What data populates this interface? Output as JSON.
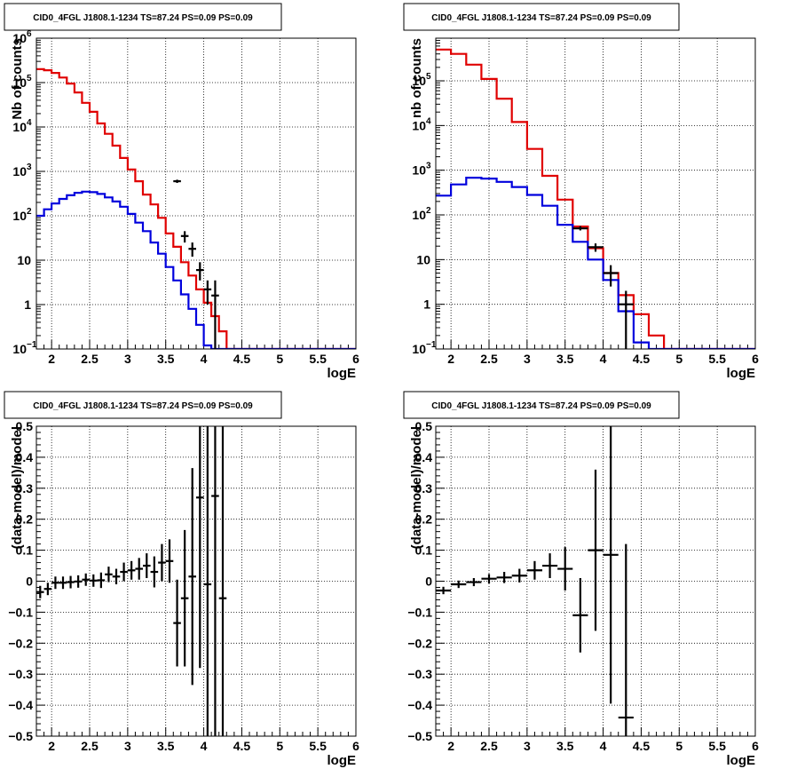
{
  "chart_data": [
    {
      "type": "line",
      "title": "CID0_4FGL J1808.1-1234 TS=87.24 PS=0.09 PS=0.09",
      "xlabel": "logE",
      "ylabel": "Nb of counts",
      "xlim": [
        1.8,
        6.0
      ],
      "ylim": [
        0.1,
        1000000
      ],
      "yscale": "log",
      "grid": true,
      "x_ticks": [
        "2",
        "2.5",
        "3",
        "3.5",
        "4",
        "4.5",
        "5",
        "5.5",
        "6"
      ],
      "y_ticks": [
        {
          "v": 0.1,
          "base": "10",
          "exp": "−1"
        },
        {
          "v": 1,
          "label": "1"
        },
        {
          "v": 10,
          "label": "10"
        },
        {
          "v": 100,
          "base": "10",
          "exp": "2"
        },
        {
          "v": 1000,
          "base": "10",
          "exp": "3"
        },
        {
          "v": 10000,
          "base": "10",
          "exp": "4"
        },
        {
          "v": 100000,
          "base": "10",
          "exp": "5"
        },
        {
          "v": 1000000,
          "base": "10",
          "exp": "6"
        }
      ],
      "bin_edges_start": 1.8,
      "bin_width": 0.1,
      "series": [
        {
          "role": "model-total",
          "color": "#e00000",
          "values": [
            200000,
            190000,
            165000,
            130000,
            95000,
            60000,
            35000,
            22000,
            12000,
            7000,
            3800,
            2000,
            1100,
            600,
            300,
            180,
            90,
            40,
            20,
            9,
            4.5,
            2.2,
            1.1,
            0.55,
            0.25,
            0.1,
            0.1,
            0.1,
            0.1,
            0.1,
            0.1,
            0.1,
            0.1,
            0.1,
            0.1,
            0.1,
            0.1,
            0.1,
            0.1,
            0.1,
            0.1,
            0.1
          ]
        },
        {
          "role": "component",
          "color": "#0000dd",
          "values": [
            100,
            140,
            190,
            240,
            290,
            330,
            350,
            340,
            310,
            260,
            210,
            160,
            110,
            70,
            45,
            25,
            14,
            7,
            3.5,
            1.7,
            0.8,
            0.35,
            0.12,
            0.1,
            0.1,
            0.1,
            0.1,
            0.1,
            0.1,
            0.1,
            0.1,
            0.1,
            0.1,
            0.1,
            0.1,
            0.1,
            0.1,
            0.1,
            0.1,
            0.1,
            0.1,
            0.1
          ]
        },
        {
          "role": "data",
          "color": "#000000",
          "points": [
            [
              3.65,
              600,
              550,
              650
            ],
            [
              3.75,
              35,
              25,
              45
            ],
            [
              3.85,
              18,
              12,
              25
            ],
            [
              3.95,
              6,
              3.5,
              9
            ],
            [
              4.05,
              2.2,
              1.0,
              3.5
            ],
            [
              4.15,
              1.6,
              0.1,
              3.5
            ]
          ]
        }
      ]
    },
    {
      "type": "line",
      "title": "CID0_4FGL J1808.1-1234 TS=87.24 PS=0.09 PS=0.09",
      "xlabel": "logE",
      "ylabel": "nb of counts",
      "xlim": [
        1.8,
        6.0
      ],
      "ylim": [
        0.1,
        900000
      ],
      "yscale": "log",
      "grid": true,
      "x_ticks": [
        "2",
        "2.5",
        "3",
        "3.5",
        "4",
        "4.5",
        "5",
        "5.5",
        "6"
      ],
      "y_ticks": [
        {
          "v": 0.1,
          "base": "10",
          "exp": "−1"
        },
        {
          "v": 1,
          "label": "1"
        },
        {
          "v": 10,
          "label": "10"
        },
        {
          "v": 100,
          "base": "10",
          "exp": "2"
        },
        {
          "v": 1000,
          "base": "10",
          "exp": "3"
        },
        {
          "v": 10000,
          "base": "10",
          "exp": "4"
        },
        {
          "v": 100000,
          "base": "10",
          "exp": "5"
        }
      ],
      "bin_edges_start": 1.8,
      "bin_width": 0.2,
      "series": [
        {
          "role": "model-total",
          "color": "#e00000",
          "values": [
            500000,
            400000,
            230000,
            110000,
            40000,
            12000,
            3000,
            750,
            220,
            55,
            18,
            5,
            1.6,
            0.6,
            0.2,
            0.1,
            0.1,
            0.1,
            0.1,
            0.1,
            0.1
          ]
        },
        {
          "role": "component",
          "color": "#0000dd",
          "values": [
            270,
            480,
            680,
            650,
            550,
            420,
            280,
            160,
            60,
            25,
            10,
            3.5,
            0.7,
            0.14,
            0.1,
            0.1,
            0.1,
            0.1,
            0.1,
            0.1,
            0.1
          ]
        },
        {
          "role": "data",
          "color": "#000000",
          "points": [
            [
              3.7,
              50,
              45,
              56
            ],
            [
              3.9,
              19,
              15,
              23
            ],
            [
              4.1,
              5,
              2.5,
              7.5
            ],
            [
              4.3,
              1,
              0.1,
              2
            ]
          ]
        }
      ]
    },
    {
      "type": "scatter",
      "title": "CID0_4FGL J1808.1-1234 TS=87.24 PS=0.09 PS=0.09",
      "xlabel": "logE",
      "ylabel": "(data-model)/model",
      "xlim": [
        1.8,
        6.0
      ],
      "ylim": [
        -0.5,
        0.5
      ],
      "grid": true,
      "x_ticks": [
        "2",
        "2.5",
        "3",
        "3.5",
        "4",
        "4.5",
        "5",
        "5.5",
        "6"
      ],
      "y_ticks": [
        "−0.5",
        "−0.4",
        "−0.3",
        "−0.2",
        "−0.1",
        "0",
        "0.1",
        "0.2",
        "0.3",
        "0.4",
        "0.5"
      ],
      "bin_width": 0.1,
      "series": [
        {
          "role": "residual",
          "color": "#000000",
          "points": [
            [
              1.85,
              -0.035,
              0.02
            ],
            [
              1.95,
              -0.025,
              0.02
            ],
            [
              2.05,
              -0.005,
              0.02
            ],
            [
              2.15,
              -0.005,
              0.02
            ],
            [
              2.25,
              -0.003,
              0.02
            ],
            [
              2.35,
              -0.001,
              0.02
            ],
            [
              2.45,
              0.005,
              0.02
            ],
            [
              2.55,
              0.002,
              0.02
            ],
            [
              2.65,
              0.003,
              0.025
            ],
            [
              2.75,
              0.022,
              0.025
            ],
            [
              2.85,
              0.015,
              0.025
            ],
            [
              2.95,
              0.03,
              0.03
            ],
            [
              3.05,
              0.035,
              0.03
            ],
            [
              3.15,
              0.04,
              0.035
            ],
            [
              3.25,
              0.05,
              0.04
            ],
            [
              3.35,
              0.03,
              0.05
            ],
            [
              3.45,
              0.06,
              0.06
            ],
            [
              3.55,
              0.065,
              0.07
            ],
            [
              3.65,
              -0.135,
              0.14
            ],
            [
              3.75,
              -0.055,
              0.22
            ],
            [
              3.85,
              0.015,
              0.35
            ],
            [
              3.95,
              0.27,
              0.55
            ],
            [
              4.05,
              -0.01,
              0.8
            ],
            [
              4.15,
              0.275,
              0.9
            ],
            [
              4.25,
              -0.055,
              1.0
            ]
          ]
        }
      ]
    },
    {
      "type": "scatter",
      "title": "CID0_4FGL J1808.1-1234 TS=87.24 PS=0.09 PS=0.09",
      "xlabel": "logE",
      "ylabel": "(data-model)/model",
      "xlim": [
        1.8,
        6.0
      ],
      "ylim": [
        -0.5,
        0.5
      ],
      "grid": true,
      "x_ticks": [
        "2",
        "2.5",
        "3",
        "3.5",
        "4",
        "4.5",
        "5",
        "5.5",
        "6"
      ],
      "y_ticks": [
        "−0.5",
        "−0.4",
        "−0.3",
        "−0.2",
        "−0.1",
        "0",
        "0.1",
        "0.2",
        "0.3",
        "0.4",
        "0.5"
      ],
      "bin_width": 0.2,
      "series": [
        {
          "role": "residual",
          "color": "#000000",
          "points": [
            [
              1.9,
              -0.03,
              0.012
            ],
            [
              2.1,
              -0.01,
              0.012
            ],
            [
              2.3,
              -0.003,
              0.013
            ],
            [
              2.5,
              0.008,
              0.015
            ],
            [
              2.7,
              0.012,
              0.018
            ],
            [
              2.9,
              0.018,
              0.022
            ],
            [
              3.1,
              0.035,
              0.03
            ],
            [
              3.3,
              0.05,
              0.04
            ],
            [
              3.5,
              0.04,
              0.07
            ],
            [
              3.7,
              -0.11,
              0.12
            ],
            [
              3.9,
              0.1,
              0.26
            ],
            [
              4.1,
              0.085,
              0.48
            ],
            [
              4.3,
              -0.44,
              0.56
            ]
          ]
        }
      ]
    }
  ]
}
